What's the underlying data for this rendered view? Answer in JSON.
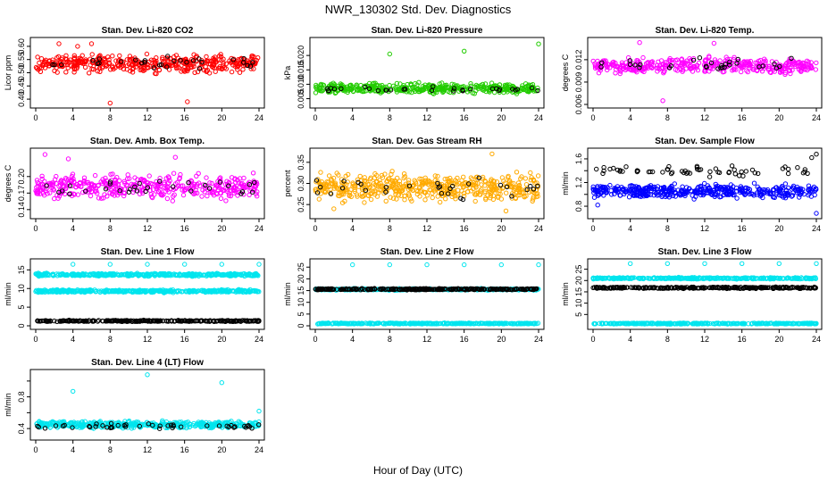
{
  "figure": {
    "title": "NWR_130302  Std. Dev. Diagnostics",
    "xlabel": "Hour of Day (UTC)"
  },
  "colors": {
    "red": "#ff0000",
    "green": "#22cc00",
    "magenta": "#ff00ff",
    "orange": "#ffaa00",
    "blue": "#0000ff",
    "cyan": "#00e5ee",
    "black": "#000000"
  },
  "chart_data": [
    {
      "type": "scatter",
      "title": "Stan. Dev. Li-820 CO2",
      "ylabel": "Licor ppm",
      "xlim": [
        0,
        24
      ],
      "ylim": [
        0.38,
        0.62
      ],
      "xticks": [
        0,
        4,
        8,
        12,
        16,
        20,
        24
      ],
      "yticks": [
        0.4,
        0.45,
        0.5,
        0.55,
        0.6
      ],
      "yticklabels": [
        "0.40",
        "0.45",
        "0.50",
        "0.55",
        "0.60"
      ],
      "series": [
        {
          "color": "red",
          "bands": [
            {
              "center": 0.535,
              "spread": 0.045
            }
          ],
          "density": 70,
          "outliers": [
            [
              2.5,
              0.61
            ],
            [
              6.0,
              0.61
            ],
            [
              8.0,
              0.385
            ],
            [
              16.3,
              0.39
            ],
            [
              4.5,
              0.6
            ]
          ]
        },
        {
          "color": "black",
          "bands": [
            {
              "center": 0.54,
              "spread": 0.035
            }
          ],
          "density": 5,
          "outliers": []
        }
      ]
    },
    {
      "type": "scatter",
      "title": "Stan. Dev. Li-820 Pressure",
      "ylabel": "kPa",
      "xlim": [
        0,
        24
      ],
      "ylim": [
        0.003,
        0.025
      ],
      "xticks": [
        0,
        4,
        8,
        12,
        16,
        20,
        24
      ],
      "yticks": [
        0.005,
        0.01,
        0.015,
        0.02
      ],
      "yticklabels": [
        "0.005",
        "0.010",
        "0.015",
        "0.020"
      ],
      "series": [
        {
          "color": "green",
          "bands": [
            {
              "center": 0.0085,
              "spread": 0.0025
            }
          ],
          "density": 70,
          "outliers": [
            [
              8.0,
              0.0205
            ],
            [
              16.0,
              0.0215
            ],
            [
              24.0,
              0.024
            ]
          ]
        },
        {
          "color": "black",
          "bands": [
            {
              "center": 0.0082,
              "spread": 0.0012
            }
          ],
          "density": 5,
          "outliers": []
        }
      ]
    },
    {
      "type": "scatter",
      "title": "Stan. Dev. Li-820 Temp.",
      "ylabel": "degrees C",
      "xlim": [
        0,
        24
      ],
      "ylim": [
        0.006,
        0.0145
      ],
      "xticks": [
        0,
        4,
        8,
        12,
        16,
        20,
        24
      ],
      "yticks": [
        0.006,
        0.009,
        0.012
      ],
      "yticklabels": [
        "0.006",
        "0.009",
        "0.012"
      ],
      "series": [
        {
          "color": "magenta",
          "bands": [
            {
              "center": 0.0112,
              "spread": 0.0015
            }
          ],
          "density": 65,
          "outliers": [
            [
              7.5,
              0.0065
            ],
            [
              5.0,
              0.0143
            ],
            [
              13.0,
              0.0142
            ]
          ]
        },
        {
          "color": "black",
          "bands": [
            {
              "center": 0.0113,
              "spread": 0.0012
            }
          ],
          "density": 5,
          "outliers": []
        }
      ]
    },
    {
      "type": "scatter",
      "title": "Stan. Dev. Amb. Box Temp.",
      "ylabel": "degrees C",
      "xlim": [
        0,
        24
      ],
      "ylim": [
        0.13,
        0.245
      ],
      "xticks": [
        0,
        4,
        8,
        12,
        16,
        20,
        24
      ],
      "yticks": [
        0.14,
        0.17,
        0.2
      ],
      "yticklabels": [
        "0.14",
        "0.17",
        "0.20"
      ],
      "series": [
        {
          "color": "magenta",
          "bands": [
            {
              "center": 0.182,
              "spread": 0.03
            }
          ],
          "density": 70,
          "outliers": [
            [
              1.0,
              0.24
            ],
            [
              3.5,
              0.232
            ],
            [
              15.0,
              0.235
            ]
          ]
        },
        {
          "color": "black",
          "bands": [
            {
              "center": 0.18,
              "spread": 0.022
            }
          ],
          "density": 5,
          "outliers": []
        }
      ]
    },
    {
      "type": "scatter",
      "title": "Stan. Dev. Gas Stream RH",
      "ylabel": "percent",
      "xlim": [
        0,
        24
      ],
      "ylim": [
        0.225,
        0.375
      ],
      "xticks": [
        0,
        4,
        8,
        12,
        16,
        20,
        24
      ],
      "yticks": [
        0.25,
        0.3,
        0.35
      ],
      "yticklabels": [
        "0.25",
        "0.30",
        "0.35"
      ],
      "series": [
        {
          "color": "orange",
          "bands": [
            {
              "center": 0.29,
              "spread": 0.045
            }
          ],
          "density": 85,
          "outliers": [
            [
              19.0,
              0.37
            ],
            [
              20.5,
              0.235
            ],
            [
              2.0,
              0.24
            ]
          ]
        },
        {
          "color": "black",
          "bands": [
            {
              "center": 0.292,
              "spread": 0.035
            }
          ],
          "density": 5,
          "outliers": []
        }
      ]
    },
    {
      "type": "scatter",
      "title": "Stan. Dev. Sample Flow",
      "ylabel": "ml/min",
      "xlim": [
        0,
        24
      ],
      "ylim": [
        0.65,
        1.72
      ],
      "xticks": [
        0,
        4,
        8,
        12,
        16,
        20,
        24
      ],
      "yticks": [
        0.8,
        1.0,
        1.2,
        1.4,
        1.6
      ],
      "yticklabels": [
        "0.8",
        "1.2",
        "1.6"
      ],
      "yticklabels_at": [
        0.8,
        1.2,
        1.6
      ],
      "series": [
        {
          "color": "blue",
          "bands": [
            {
              "center": 1.05,
              "spread": 0.16
            }
          ],
          "density": 75,
          "outliers": [
            [
              24.0,
              0.68
            ],
            [
              0.5,
              0.82
            ]
          ]
        },
        {
          "color": "black",
          "bands": [
            {
              "center": 1.4,
              "spread": 0.12
            }
          ],
          "density": 10,
          "outliers": [
            [
              24.0,
              1.68
            ],
            [
              23.5,
              1.62
            ]
          ]
        }
      ]
    },
    {
      "type": "scatter",
      "title": "Stan. Dev. Line 1 Flow",
      "ylabel": "ml/min",
      "xlim": [
        0,
        24
      ],
      "ylim": [
        0,
        17
      ],
      "xticks": [
        0,
        4,
        8,
        12,
        16,
        20,
        24
      ],
      "yticks": [
        0,
        5,
        10,
        15
      ],
      "yticklabels": [
        "0",
        "5",
        "10",
        "15"
      ],
      "series": [
        {
          "color": "cyan",
          "bands": [
            {
              "center": 13.7,
              "spread": 0.5
            },
            {
              "center": 9.3,
              "spread": 0.5
            }
          ],
          "density": 70,
          "outliers": [
            [
              4.0,
              16.5
            ],
            [
              8.0,
              16.5
            ],
            [
              12.0,
              16.5
            ],
            [
              16.0,
              16.5
            ],
            [
              20.0,
              16.5
            ],
            [
              24.0,
              16.5
            ]
          ]
        },
        {
          "color": "black",
          "bands": [
            {
              "center": 1.3,
              "spread": 0.25
            }
          ],
          "density": 50,
          "outliers": []
        }
      ]
    },
    {
      "type": "scatter",
      "title": "Stan. Dev. Line 2 Flow",
      "ylabel": "ml/min",
      "xlim": [
        0,
        24
      ],
      "ylim": [
        0,
        27
      ],
      "xticks": [
        0,
        4,
        8,
        12,
        16,
        20,
        24
      ],
      "yticks": [
        0,
        5,
        10,
        15,
        20,
        25
      ],
      "yticklabels": [
        "0",
        "5",
        "10",
        "15",
        "20",
        "25"
      ],
      "series": [
        {
          "color": "cyan",
          "bands": [
            {
              "center": 1.0,
              "spread": 0.3
            },
            {
              "center": 15.5,
              "spread": 0.5
            }
          ],
          "density": 60,
          "outliers": [
            [
              4.0,
              26.0
            ],
            [
              8.0,
              26.0
            ],
            [
              12.0,
              26.0
            ],
            [
              16.0,
              26.0
            ],
            [
              20.0,
              26.0
            ],
            [
              24.0,
              26.0
            ]
          ]
        },
        {
          "color": "black",
          "bands": [
            {
              "center": 15.6,
              "spread": 0.4
            }
          ],
          "density": 50,
          "outliers": []
        }
      ]
    },
    {
      "type": "scatter",
      "title": "Stan. Dev. Line 3 Flow",
      "ylabel": "ml/min",
      "xlim": [
        0,
        24
      ],
      "ylim": [
        0,
        28
      ],
      "xticks": [
        0,
        4,
        8,
        12,
        16,
        20,
        24
      ],
      "yticks": [
        5,
        10,
        15,
        20,
        25
      ],
      "yticklabels": [
        "5",
        "10",
        "15",
        "20",
        "25"
      ],
      "series": [
        {
          "color": "cyan",
          "bands": [
            {
              "center": 1.0,
              "spread": 0.3
            },
            {
              "center": 21.0,
              "spread": 0.5
            }
          ],
          "density": 60,
          "outliers": [
            [
              4.0,
              27.5
            ],
            [
              8.0,
              27.5
            ],
            [
              12.0,
              27.5
            ],
            [
              16.0,
              27.5
            ],
            [
              20.0,
              27.5
            ],
            [
              24.0,
              27.5
            ]
          ]
        },
        {
          "color": "black",
          "bands": [
            {
              "center": 16.8,
              "spread": 0.5
            }
          ],
          "density": 50,
          "outliers": []
        }
      ]
    },
    {
      "type": "scatter",
      "title": "Stan. Dev. Line 4 (LT) Flow",
      "ylabel": "ml/min",
      "xlim": [
        0,
        24
      ],
      "ylim": [
        0.3,
        1.1
      ],
      "xticks": [
        0,
        4,
        8,
        12,
        16,
        20,
        24
      ],
      "yticks": [
        0.4,
        0.6,
        0.8,
        1.0
      ],
      "yticklabels": [
        "0.4",
        "0.8"
      ],
      "yticklabels_at": [
        0.4,
        0.8
      ],
      "series": [
        {
          "color": "cyan",
          "bands": [
            {
              "center": 0.45,
              "spread": 0.06
            }
          ],
          "density": 75,
          "outliers": [
            [
              4.0,
              0.87
            ],
            [
              12.0,
              1.08
            ],
            [
              20.0,
              0.98
            ],
            [
              24.0,
              0.62
            ]
          ]
        },
        {
          "color": "black",
          "bands": [
            {
              "center": 0.43,
              "spread": 0.05
            }
          ],
          "density": 8,
          "outliers": []
        }
      ]
    }
  ]
}
